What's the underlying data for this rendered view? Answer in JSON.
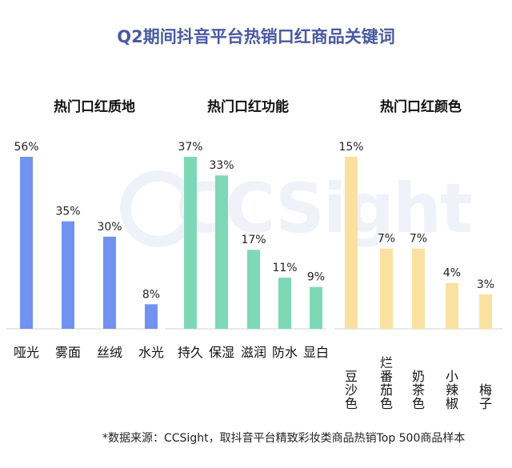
{
  "title": "Q2期间抖音平台热销口红商品关键词",
  "watermark": "CCSight",
  "footnote": "*数据来源：CCSight，取抖音平台精致彩妆类商品热销Top 500商品样本",
  "colors": {
    "texture": "#7292f0",
    "function": "#7dd8b8",
    "color": "#fbe1a0"
  },
  "chart_data": [
    {
      "type": "bar",
      "title": "热门口红质地",
      "categories": [
        "哑光",
        "雾面",
        "丝绒",
        "水光"
      ],
      "values": [
        56,
        35,
        30,
        8
      ],
      "value_labels": [
        "56%",
        "35%",
        "30%",
        "8%"
      ],
      "ylim": [
        0,
        56
      ],
      "grid": false,
      "color": "#7292f0"
    },
    {
      "type": "bar",
      "title": "热门口红功能",
      "categories": [
        "持久",
        "保湿",
        "滋润",
        "防水",
        "显白"
      ],
      "values": [
        37,
        33,
        17,
        11,
        9
      ],
      "value_labels": [
        "37%",
        "33%",
        "17%",
        "11%",
        "9%"
      ],
      "ylim": [
        0,
        37
      ],
      "grid": false,
      "color": "#7dd8b8"
    },
    {
      "type": "bar",
      "title": "热门口红颜色",
      "categories": [
        "豆沙色",
        "烂番茄色",
        "奶茶色",
        "小辣椒",
        "梅子"
      ],
      "values": [
        15,
        7,
        7,
        4,
        3
      ],
      "value_labels": [
        "15%",
        "7%",
        "7%",
        "4%",
        "3%"
      ],
      "ylim": [
        0,
        15
      ],
      "grid": false,
      "color": "#fbe1a0"
    }
  ]
}
